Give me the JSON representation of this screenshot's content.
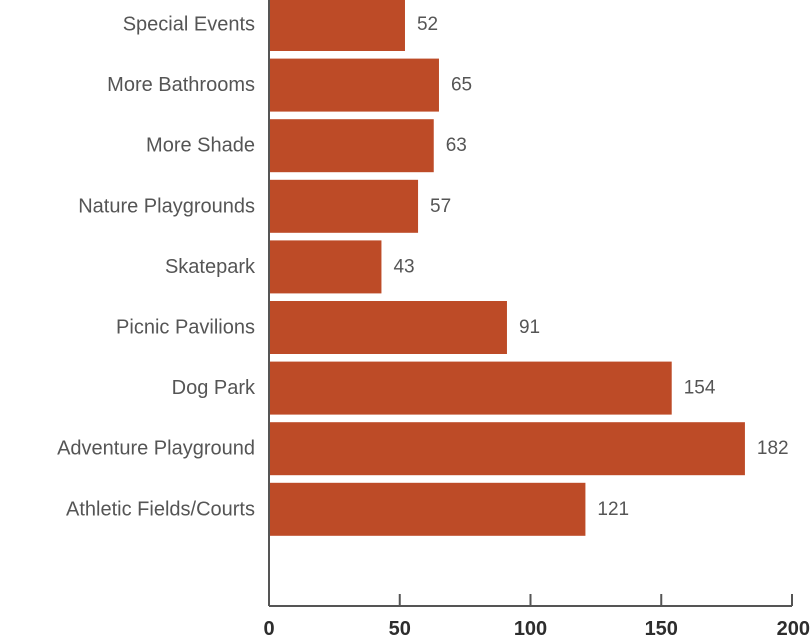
{
  "chart_data": {
    "type": "bar",
    "orientation": "horizontal",
    "categories": [
      "Special Events",
      "More Bathrooms",
      "More Shade",
      "Nature Playgrounds",
      "Skatepark",
      "Picnic Pavilions",
      "Dog Park",
      "Adventure Playground",
      "Athletic Fields/Courts"
    ],
    "values": [
      52,
      65,
      63,
      57,
      43,
      91,
      154,
      182,
      121
    ],
    "value_labels": [
      "52",
      "65",
      "63",
      "57",
      "43",
      "91",
      "154",
      "182",
      "121"
    ],
    "xticks": [
      0,
      50,
      100,
      150,
      200
    ],
    "xtick_labels": [
      "0",
      "50",
      "100",
      "150",
      "200"
    ],
    "xlim": [
      0,
      200
    ],
    "title": "",
    "xlabel": "",
    "ylabel": "",
    "grid": false,
    "legend": "none",
    "colors": {
      "bar": "#BD4B27",
      "axis": "#555555",
      "category_text": "#555555",
      "value_text": "#555555",
      "tick_text": "#2d2d2d"
    }
  }
}
